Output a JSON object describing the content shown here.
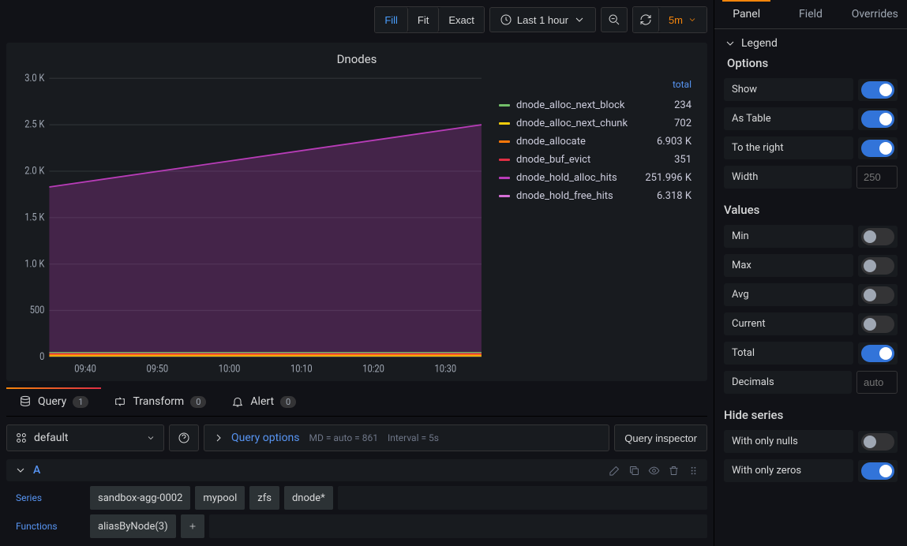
{
  "toolbar": {
    "fill": "Fill",
    "fit": "Fit",
    "exact": "Exact",
    "timerange": "Last 1 hour",
    "refresh_interval": "5m"
  },
  "panel": {
    "title": "Dnodes",
    "chart": {
      "type": "area",
      "ylim": [
        0,
        3000
      ],
      "ytick_step": 500,
      "yticks": [
        "0",
        "500",
        "1.0 K",
        "1.5 K",
        "2.0 K",
        "2.5 K",
        "3.0 K"
      ],
      "xticks": [
        "09:40",
        "09:50",
        "10:00",
        "10:10",
        "10:20",
        "10:30"
      ],
      "grid_color": "#2c3235",
      "background": "#181b1f",
      "main_series": {
        "color": "#b83cb8",
        "fill_opacity": 0.28,
        "start_y": 1830,
        "end_y": 2500
      },
      "baseline_colors": [
        "#f2cc0c",
        "#ff780a",
        "#e02f44",
        "#73bf69"
      ]
    },
    "legend": {
      "header": "total",
      "items": [
        {
          "name": "dnode_alloc_next_block",
          "value": "234",
          "color": "#73bf69"
        },
        {
          "name": "dnode_alloc_next_chunk",
          "value": "702",
          "color": "#f2cc0c"
        },
        {
          "name": "dnode_allocate",
          "value": "6.903 K",
          "color": "#ff780a"
        },
        {
          "name": "dnode_buf_evict",
          "value": "351",
          "color": "#e02f44"
        },
        {
          "name": "dnode_hold_alloc_hits",
          "value": "251.996 K",
          "color": "#b83cb8"
        },
        {
          "name": "dnode_hold_free_hits",
          "value": "6.318 K",
          "color": "#d66fd6"
        }
      ]
    }
  },
  "tabs": {
    "query": {
      "label": "Query",
      "count": "1"
    },
    "transform": {
      "label": "Transform",
      "count": "0"
    },
    "alert": {
      "label": "Alert",
      "count": "0"
    }
  },
  "editor": {
    "datasource": "default",
    "query_options_label": "Query options",
    "query_options_meta1": "MD = auto = 861",
    "query_options_meta2": "Interval = 5s",
    "query_inspector": "Query inspector",
    "query_letter": "A",
    "series_label": "Series",
    "series_chips": [
      "sandbox-agg-0002",
      "mypool",
      "zfs",
      "dnode*"
    ],
    "functions_label": "Functions",
    "functions_chips": [
      "aliasByNode(3)"
    ]
  },
  "sidebar": {
    "tabs": {
      "panel": "Panel",
      "field": "Field",
      "overrides": "Overrides"
    },
    "legend": {
      "title": "Legend",
      "options_title": "Options",
      "show": {
        "label": "Show",
        "on": true
      },
      "as_table": {
        "label": "As Table",
        "on": true
      },
      "to_right": {
        "label": "To the right",
        "on": true
      },
      "width": {
        "label": "Width",
        "placeholder": "250"
      }
    },
    "values": {
      "title": "Values",
      "min": {
        "label": "Min",
        "on": false
      },
      "max": {
        "label": "Max",
        "on": false
      },
      "avg": {
        "label": "Avg",
        "on": false
      },
      "current": {
        "label": "Current",
        "on": false
      },
      "total": {
        "label": "Total",
        "on": true
      },
      "decimals": {
        "label": "Decimals",
        "placeholder": "auto"
      }
    },
    "hide": {
      "title": "Hide series",
      "nulls": {
        "label": "With only nulls",
        "on": false
      },
      "zeros": {
        "label": "With only zeros",
        "on": true
      }
    }
  }
}
